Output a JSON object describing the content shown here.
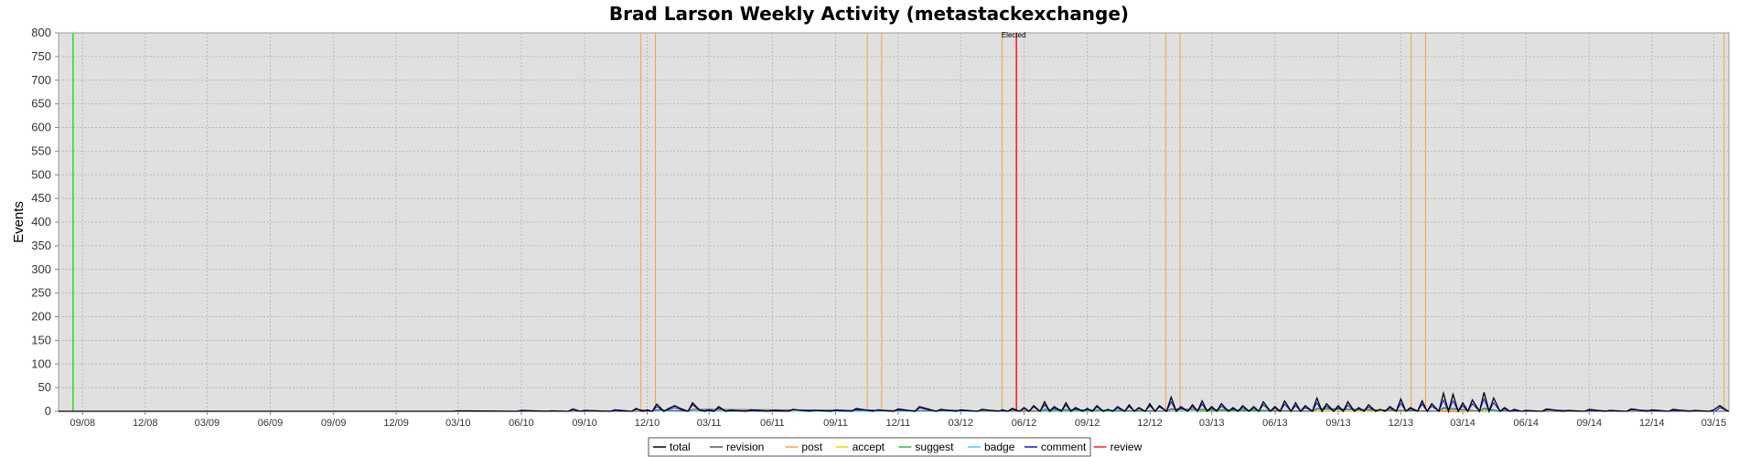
{
  "chart_data": {
    "type": "line",
    "title": "Brad Larson Weekly Activity (metastackexchange)",
    "ylabel": "Events",
    "xlabel": "",
    "ylim": [
      0,
      800
    ],
    "yticks": [
      0,
      50,
      100,
      150,
      200,
      250,
      300,
      350,
      400,
      450,
      500,
      550,
      600,
      650,
      700,
      750,
      800
    ],
    "xlim": [
      "2008-07-28",
      "2015-03-23"
    ],
    "xticks": [
      {
        "date": "2008-09-01",
        "label": "09/08"
      },
      {
        "date": "2008-12-01",
        "label": "12/08"
      },
      {
        "date": "2009-03-01",
        "label": "03/09"
      },
      {
        "date": "2009-06-01",
        "label": "06/09"
      },
      {
        "date": "2009-09-01",
        "label": "09/09"
      },
      {
        "date": "2009-12-01",
        "label": "12/09"
      },
      {
        "date": "2010-03-01",
        "label": "03/10"
      },
      {
        "date": "2010-06-01",
        "label": "06/10"
      },
      {
        "date": "2010-09-01",
        "label": "09/10"
      },
      {
        "date": "2010-12-01",
        "label": "12/10"
      },
      {
        "date": "2011-03-01",
        "label": "03/11"
      },
      {
        "date": "2011-06-01",
        "label": "06/11"
      },
      {
        "date": "2011-09-01",
        "label": "09/11"
      },
      {
        "date": "2011-12-01",
        "label": "12/11"
      },
      {
        "date": "2012-03-01",
        "label": "03/12"
      },
      {
        "date": "2012-06-01",
        "label": "06/12"
      },
      {
        "date": "2012-09-01",
        "label": "09/12"
      },
      {
        "date": "2012-12-01",
        "label": "12/12"
      },
      {
        "date": "2013-03-01",
        "label": "03/13"
      },
      {
        "date": "2013-06-01",
        "label": "06/13"
      },
      {
        "date": "2013-09-01",
        "label": "09/13"
      },
      {
        "date": "2013-12-01",
        "label": "12/13"
      },
      {
        "date": "2014-03-01",
        "label": "03/14"
      },
      {
        "date": "2014-06-01",
        "label": "06/14"
      },
      {
        "date": "2014-09-01",
        "label": "09/14"
      },
      {
        "date": "2014-12-01",
        "label": "12/14"
      },
      {
        "date": "2015-03-01",
        "label": "03/15"
      }
    ],
    "grid": true,
    "legend_position": "bottom",
    "series": [
      {
        "name": "total",
        "color": "#000000",
        "points": [
          [
            "2010-03-01",
            1
          ],
          [
            "2010-06-01",
            2
          ],
          [
            "2010-07-15",
            1
          ],
          [
            "2010-08-15",
            5
          ],
          [
            "2010-09-01",
            2
          ],
          [
            "2010-10-15",
            3
          ],
          [
            "2010-11-15",
            6
          ],
          [
            "2010-12-01",
            3
          ],
          [
            "2010-12-15",
            15
          ],
          [
            "2011-01-01",
            6
          ],
          [
            "2011-01-10",
            12
          ],
          [
            "2011-01-20",
            5
          ],
          [
            "2011-02-05",
            18
          ],
          [
            "2011-02-15",
            3
          ],
          [
            "2011-03-01",
            4
          ],
          [
            "2011-03-15",
            10
          ],
          [
            "2011-04-01",
            2
          ],
          [
            "2011-05-01",
            3
          ],
          [
            "2011-06-01",
            2
          ],
          [
            "2011-07-01",
            4
          ],
          [
            "2011-08-01",
            2
          ],
          [
            "2011-09-01",
            3
          ],
          [
            "2011-10-01",
            6
          ],
          [
            "2011-11-01",
            3
          ],
          [
            "2011-12-01",
            5
          ],
          [
            "2012-01-01",
            10
          ],
          [
            "2012-02-01",
            4
          ],
          [
            "2012-03-01",
            3
          ],
          [
            "2012-04-01",
            4
          ],
          [
            "2012-05-01",
            3
          ],
          [
            "2012-05-15",
            6
          ],
          [
            "2012-06-01",
            8
          ],
          [
            "2012-06-15",
            12
          ],
          [
            "2012-07-01",
            20
          ],
          [
            "2012-07-15",
            10
          ],
          [
            "2012-08-01",
            18
          ],
          [
            "2012-08-15",
            8
          ],
          [
            "2012-09-01",
            6
          ],
          [
            "2012-09-15",
            12
          ],
          [
            "2012-10-01",
            4
          ],
          [
            "2012-10-15",
            10
          ],
          [
            "2012-11-01",
            14
          ],
          [
            "2012-11-15",
            8
          ],
          [
            "2012-12-01",
            16
          ],
          [
            "2012-12-15",
            12
          ],
          [
            "2013-01-01",
            30
          ],
          [
            "2013-01-15",
            10
          ],
          [
            "2013-02-01",
            14
          ],
          [
            "2013-02-15",
            22
          ],
          [
            "2013-03-01",
            10
          ],
          [
            "2013-03-15",
            16
          ],
          [
            "2013-04-01",
            8
          ],
          [
            "2013-04-15",
            12
          ],
          [
            "2013-05-01",
            10
          ],
          [
            "2013-05-15",
            20
          ],
          [
            "2013-06-01",
            10
          ],
          [
            "2013-06-15",
            22
          ],
          [
            "2013-07-01",
            18
          ],
          [
            "2013-07-15",
            12
          ],
          [
            "2013-08-01",
            28
          ],
          [
            "2013-08-15",
            16
          ],
          [
            "2013-09-01",
            12
          ],
          [
            "2013-09-15",
            20
          ],
          [
            "2013-10-01",
            8
          ],
          [
            "2013-10-15",
            14
          ],
          [
            "2013-11-01",
            4
          ],
          [
            "2013-11-15",
            10
          ],
          [
            "2013-12-01",
            26
          ],
          [
            "2013-12-15",
            8
          ],
          [
            "2014-01-01",
            22
          ],
          [
            "2014-01-15",
            16
          ],
          [
            "2014-02-01",
            38
          ],
          [
            "2014-02-15",
            36
          ],
          [
            "2014-03-01",
            18
          ],
          [
            "2014-03-15",
            24
          ],
          [
            "2014-04-01",
            40
          ],
          [
            "2014-04-15",
            28
          ],
          [
            "2014-05-01",
            8
          ],
          [
            "2014-05-15",
            4
          ],
          [
            "2014-06-01",
            2
          ],
          [
            "2014-07-01",
            5
          ],
          [
            "2014-08-01",
            2
          ],
          [
            "2014-09-01",
            4
          ],
          [
            "2014-10-01",
            2
          ],
          [
            "2014-11-01",
            5
          ],
          [
            "2014-12-01",
            3
          ],
          [
            "2015-01-01",
            4
          ],
          [
            "2015-02-01",
            2
          ],
          [
            "2015-03-01",
            3
          ],
          [
            "2015-03-10",
            12
          ],
          [
            "2015-03-20",
            2
          ]
        ]
      },
      {
        "name": "revision",
        "color": "#555555",
        "points": [
          [
            "2010-12-15",
            3
          ],
          [
            "2011-02-05",
            4
          ],
          [
            "2012-07-01",
            4
          ],
          [
            "2013-01-01",
            5
          ],
          [
            "2013-08-01",
            6
          ],
          [
            "2014-02-01",
            8
          ],
          [
            "2014-04-01",
            7
          ],
          [
            "2014-05-01",
            1
          ]
        ]
      },
      {
        "name": "post",
        "color": "#f5a040",
        "points": [
          [
            "2010-12-15",
            2
          ],
          [
            "2011-10-01",
            2
          ],
          [
            "2012-06-01",
            2
          ],
          [
            "2013-01-01",
            3
          ],
          [
            "2013-08-01",
            4
          ],
          [
            "2014-02-01",
            6
          ],
          [
            "2014-04-01",
            5
          ],
          [
            "2014-05-01",
            1
          ]
        ]
      },
      {
        "name": "accept",
        "color": "#e8d800",
        "points": [
          [
            "2013-01-01",
            1
          ],
          [
            "2014-02-01",
            2
          ],
          [
            "2014-04-01",
            1
          ]
        ]
      },
      {
        "name": "suggest",
        "color": "#30c030",
        "points": [
          [
            "2013-06-01",
            2
          ],
          [
            "2013-08-01",
            4
          ],
          [
            "2014-02-01",
            6
          ],
          [
            "2014-04-01",
            4
          ],
          [
            "2014-05-01",
            1
          ]
        ]
      },
      {
        "name": "badge",
        "color": "#40d0ff",
        "points": [
          [
            "2012-07-01",
            2
          ],
          [
            "2013-02-15",
            3
          ],
          [
            "2013-08-01",
            4
          ],
          [
            "2014-02-01",
            5
          ],
          [
            "2014-04-01",
            4
          ]
        ]
      },
      {
        "name": "comment",
        "color": "#1010e0",
        "points": [
          [
            "2010-03-01",
            1
          ],
          [
            "2010-06-01",
            1
          ],
          [
            "2010-08-15",
            3
          ],
          [
            "2010-09-01",
            1
          ],
          [
            "2010-11-15",
            4
          ],
          [
            "2010-12-15",
            10
          ],
          [
            "2011-01-01",
            4
          ],
          [
            "2011-01-10",
            8
          ],
          [
            "2011-01-20",
            3
          ],
          [
            "2011-02-05",
            14
          ],
          [
            "2011-02-15",
            2
          ],
          [
            "2011-03-15",
            7
          ],
          [
            "2011-04-01",
            1
          ],
          [
            "2011-07-01",
            3
          ],
          [
            "2011-10-01",
            4
          ],
          [
            "2011-12-01",
            3
          ],
          [
            "2012-01-01",
            7
          ],
          [
            "2012-02-01",
            3
          ],
          [
            "2012-04-01",
            3
          ],
          [
            "2012-05-15",
            4
          ],
          [
            "2012-06-01",
            6
          ],
          [
            "2012-06-15",
            9
          ],
          [
            "2012-07-01",
            14
          ],
          [
            "2012-07-15",
            7
          ],
          [
            "2012-08-01",
            13
          ],
          [
            "2012-08-15",
            6
          ],
          [
            "2012-09-01",
            4
          ],
          [
            "2012-09-15",
            9
          ],
          [
            "2012-10-01",
            3
          ],
          [
            "2012-10-15",
            7
          ],
          [
            "2012-11-01",
            10
          ],
          [
            "2012-11-15",
            6
          ],
          [
            "2012-12-01",
            12
          ],
          [
            "2012-12-15",
            9
          ],
          [
            "2013-01-01",
            20
          ],
          [
            "2013-01-15",
            7
          ],
          [
            "2013-02-01",
            10
          ],
          [
            "2013-02-15",
            15
          ],
          [
            "2013-03-01",
            7
          ],
          [
            "2013-03-15",
            11
          ],
          [
            "2013-04-01",
            6
          ],
          [
            "2013-04-15",
            8
          ],
          [
            "2013-05-01",
            7
          ],
          [
            "2013-05-15",
            14
          ],
          [
            "2013-06-01",
            7
          ],
          [
            "2013-06-15",
            15
          ],
          [
            "2013-07-01",
            12
          ],
          [
            "2013-07-15",
            8
          ],
          [
            "2013-08-01",
            18
          ],
          [
            "2013-08-15",
            11
          ],
          [
            "2013-09-01",
            8
          ],
          [
            "2013-09-15",
            13
          ],
          [
            "2013-10-01",
            5
          ],
          [
            "2013-10-15",
            9
          ],
          [
            "2013-11-01",
            3
          ],
          [
            "2013-11-15",
            7
          ],
          [
            "2013-12-01",
            17
          ],
          [
            "2013-12-15",
            5
          ],
          [
            "2014-01-01",
            15
          ],
          [
            "2014-01-15",
            11
          ],
          [
            "2014-02-01",
            24
          ],
          [
            "2014-02-15",
            22
          ],
          [
            "2014-03-01",
            12
          ],
          [
            "2014-03-15",
            16
          ],
          [
            "2014-04-01",
            26
          ],
          [
            "2014-04-15",
            18
          ],
          [
            "2014-05-01",
            5
          ],
          [
            "2014-05-15",
            2
          ],
          [
            "2014-06-01",
            1
          ],
          [
            "2014-07-01",
            3
          ],
          [
            "2014-09-01",
            2
          ],
          [
            "2014-11-01",
            3
          ],
          [
            "2015-01-01",
            2
          ],
          [
            "2015-03-10",
            8
          ]
        ]
      },
      {
        "name": "review",
        "color": "#ff2020",
        "points": []
      }
    ],
    "event_lines": [
      {
        "date": "2008-08-18",
        "color": "#30e030",
        "label": ""
      },
      {
        "date": "2010-11-22",
        "color": "#f5a040",
        "label": ""
      },
      {
        "date": "2010-12-13",
        "color": "#f5a040",
        "label": ""
      },
      {
        "date": "2011-10-17",
        "color": "#f5a040",
        "label": ""
      },
      {
        "date": "2011-11-07",
        "color": "#f5a040",
        "label": ""
      },
      {
        "date": "2012-04-30",
        "color": "#f5a040",
        "label": ""
      },
      {
        "date": "2012-05-21",
        "color": "#ff2020",
        "label": "Elected"
      },
      {
        "date": "2012-12-24",
        "color": "#f5a040",
        "label": ""
      },
      {
        "date": "2013-01-14",
        "color": "#f5a040",
        "label": ""
      },
      {
        "date": "2013-12-16",
        "color": "#f5a040",
        "label": ""
      },
      {
        "date": "2014-01-06",
        "color": "#f5a040",
        "label": ""
      },
      {
        "date": "2015-03-16",
        "color": "#f5a040",
        "label": ""
      }
    ]
  }
}
